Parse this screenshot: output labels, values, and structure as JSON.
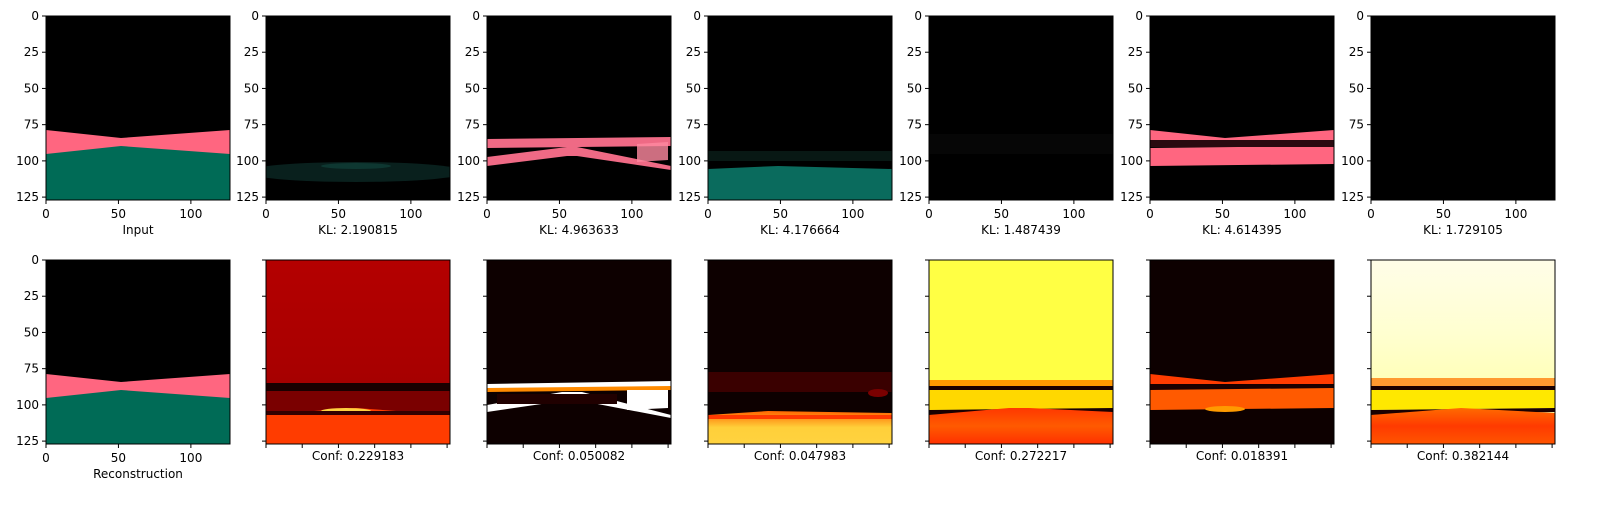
{
  "figure": {
    "top_row": [
      {
        "id": "input",
        "caption": "Input",
        "kind": "image"
      },
      {
        "id": "z1",
        "caption": "KL: 2.190815",
        "kind": "image"
      },
      {
        "id": "z2",
        "caption": "KL: 4.963633",
        "kind": "image"
      },
      {
        "id": "z3",
        "caption": "KL: 4.176664",
        "kind": "image"
      },
      {
        "id": "z4",
        "caption": "KL: 1.487439",
        "kind": "image"
      },
      {
        "id": "z5",
        "caption": "KL: 4.614395",
        "kind": "image"
      },
      {
        "id": "z6",
        "caption": "KL: 1.729105",
        "kind": "image"
      }
    ],
    "bottom_row": [
      {
        "id": "recon",
        "caption": "Reconstruction",
        "kind": "image"
      },
      {
        "id": "c1",
        "caption": "Conf: 0.229183",
        "kind": "heatmap"
      },
      {
        "id": "c2",
        "caption": "Conf: 0.050082",
        "kind": "heatmap"
      },
      {
        "id": "c3",
        "caption": "Conf: 0.047983",
        "kind": "heatmap"
      },
      {
        "id": "c4",
        "caption": "Conf: 0.272217",
        "kind": "heatmap"
      },
      {
        "id": "c5",
        "caption": "Conf: 0.018391",
        "kind": "heatmap"
      },
      {
        "id": "c6",
        "caption": "Conf: 0.382144",
        "kind": "heatmap"
      }
    ]
  },
  "chart_data": {
    "type": "heatmap",
    "grid": false,
    "x_ticks": [
      0,
      50,
      100
    ],
    "y_ticks": [
      0,
      25,
      50,
      75,
      100,
      125
    ],
    "xlim": [
      0,
      127
    ],
    "ylim": [
      127,
      0
    ],
    "colors": {
      "background": "#000000",
      "pink": "#ff6680",
      "teal": "#006b56"
    }
  }
}
